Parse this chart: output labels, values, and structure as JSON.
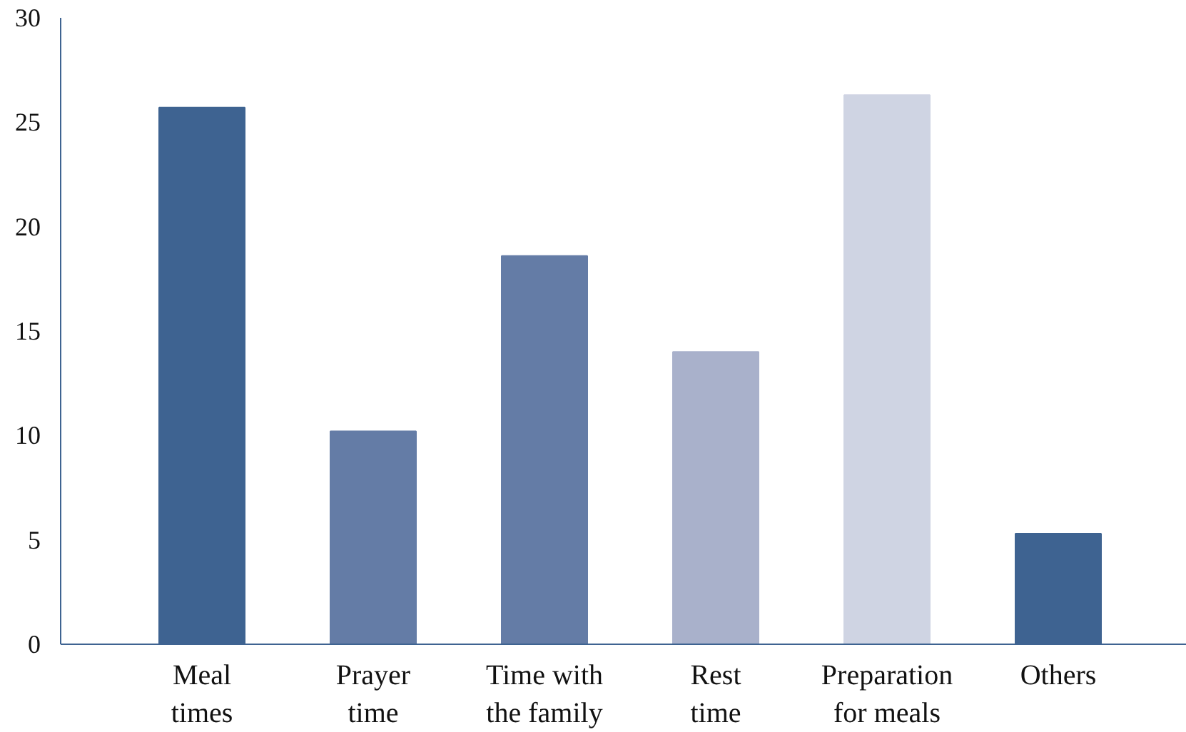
{
  "chart_data": {
    "type": "bar",
    "categories": [
      "Meal times",
      "Prayer time",
      "Time with the family",
      "Rest time",
      "Preparation for meals",
      "Others"
    ],
    "values": [
      25.7,
      10.2,
      18.6,
      14.0,
      26.3,
      5.3
    ],
    "colors": [
      "#3e6391",
      "#647ca6",
      "#647ca6",
      "#a9b1cb",
      "#cfd4e3",
      "#3e6391"
    ],
    "ylim": [
      0,
      30
    ],
    "yticks": [
      0,
      5,
      10,
      15,
      20,
      25,
      30
    ],
    "grid": false
  }
}
